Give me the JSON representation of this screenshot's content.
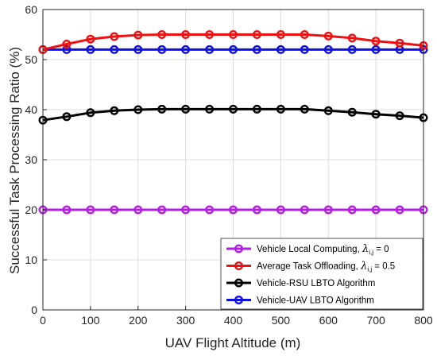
{
  "chart_data": {
    "type": "line",
    "title": "",
    "xlabel": "UAV Flight Altitude (m)",
    "ylabel": "Successful Task Processing Ratio (%)",
    "xlim": [
      0,
      800
    ],
    "ylim": [
      0,
      60
    ],
    "xticks": [
      0,
      100,
      200,
      300,
      400,
      500,
      600,
      700,
      800
    ],
    "yticks": [
      0,
      10,
      20,
      30,
      40,
      50,
      60
    ],
    "x": [
      0,
      50,
      100,
      150,
      200,
      250,
      300,
      350,
      400,
      450,
      500,
      550,
      600,
      650,
      700,
      750,
      800
    ],
    "grid": true,
    "legend_position": "bottom-right",
    "series": [
      {
        "name": "Vehicle Local Computing, λ",
        "name_sub": "i,j",
        "name_suffix": " = 0",
        "color": "#b21ee6",
        "glow": true,
        "values": [
          20,
          20,
          20,
          20,
          20,
          20,
          20,
          20,
          20,
          20,
          20,
          20,
          20,
          20,
          20,
          20,
          20
        ]
      },
      {
        "name": "Average Task Offloading, λ",
        "name_sub": "i,j",
        "name_suffix": " = 0.5",
        "color": "#ee1111",
        "values": [
          52,
          53.1,
          54.1,
          54.6,
          54.9,
          55.0,
          55.0,
          55.0,
          55.0,
          55.0,
          55.0,
          55.0,
          54.7,
          54.3,
          53.7,
          53.3,
          52.8
        ]
      },
      {
        "name": "Vehicle-RSU LBTO Algorithm",
        "color": "#000000",
        "values": [
          37.9,
          38.6,
          39.4,
          39.8,
          40.0,
          40.1,
          40.1,
          40.1,
          40.1,
          40.1,
          40.1,
          40.1,
          39.8,
          39.5,
          39.1,
          38.8,
          38.4
        ]
      },
      {
        "name": "Vehicle-UAV LBTO Algorithm",
        "color": "#1010e0",
        "values": [
          52,
          52,
          52,
          52,
          52,
          52,
          52,
          52,
          52,
          52,
          52,
          52,
          52,
          52,
          52,
          52,
          52
        ]
      }
    ]
  }
}
